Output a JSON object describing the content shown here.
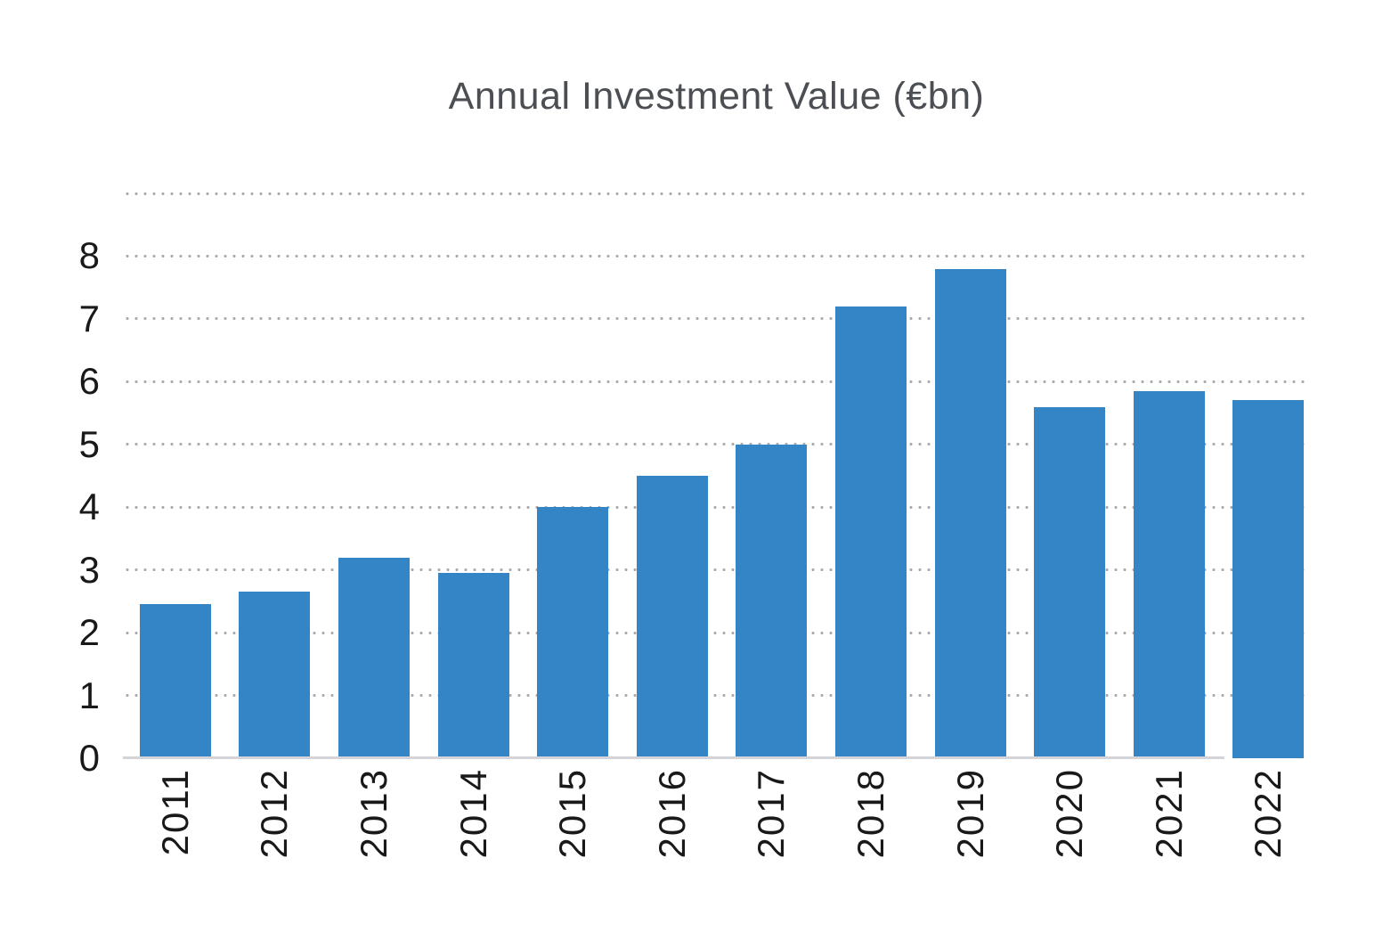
{
  "chart_data": {
    "type": "bar",
    "title": "Annual Investment Value (€bn)",
    "categories": [
      "2011",
      "2012",
      "2013",
      "2014",
      "2015",
      "2016",
      "2017",
      "2018",
      "2019",
      "2020",
      "2021",
      "2022"
    ],
    "values": [
      2.45,
      2.65,
      3.2,
      2.95,
      4.0,
      4.5,
      5.0,
      7.2,
      7.8,
      5.6,
      5.85,
      5.7
    ],
    "xlabel": "",
    "ylabel": "",
    "ylim": [
      0,
      9
    ],
    "y_tick_labels": [
      "0",
      "1",
      "2",
      "3",
      "4",
      "5",
      "6",
      "7",
      "8"
    ],
    "gridline_values": [
      1,
      2,
      3,
      4,
      5,
      6,
      7,
      8,
      9
    ],
    "gridline_style": "dotted",
    "legend": null,
    "x_tick_rotation_degrees": 90
  },
  "colors": {
    "bar": "#3485c6",
    "grid_dots": "#ababae",
    "baseline": "#d5d5d9",
    "title_text": "#4b4f54",
    "axis_text": "#19191a",
    "background": "#ffffff"
  }
}
